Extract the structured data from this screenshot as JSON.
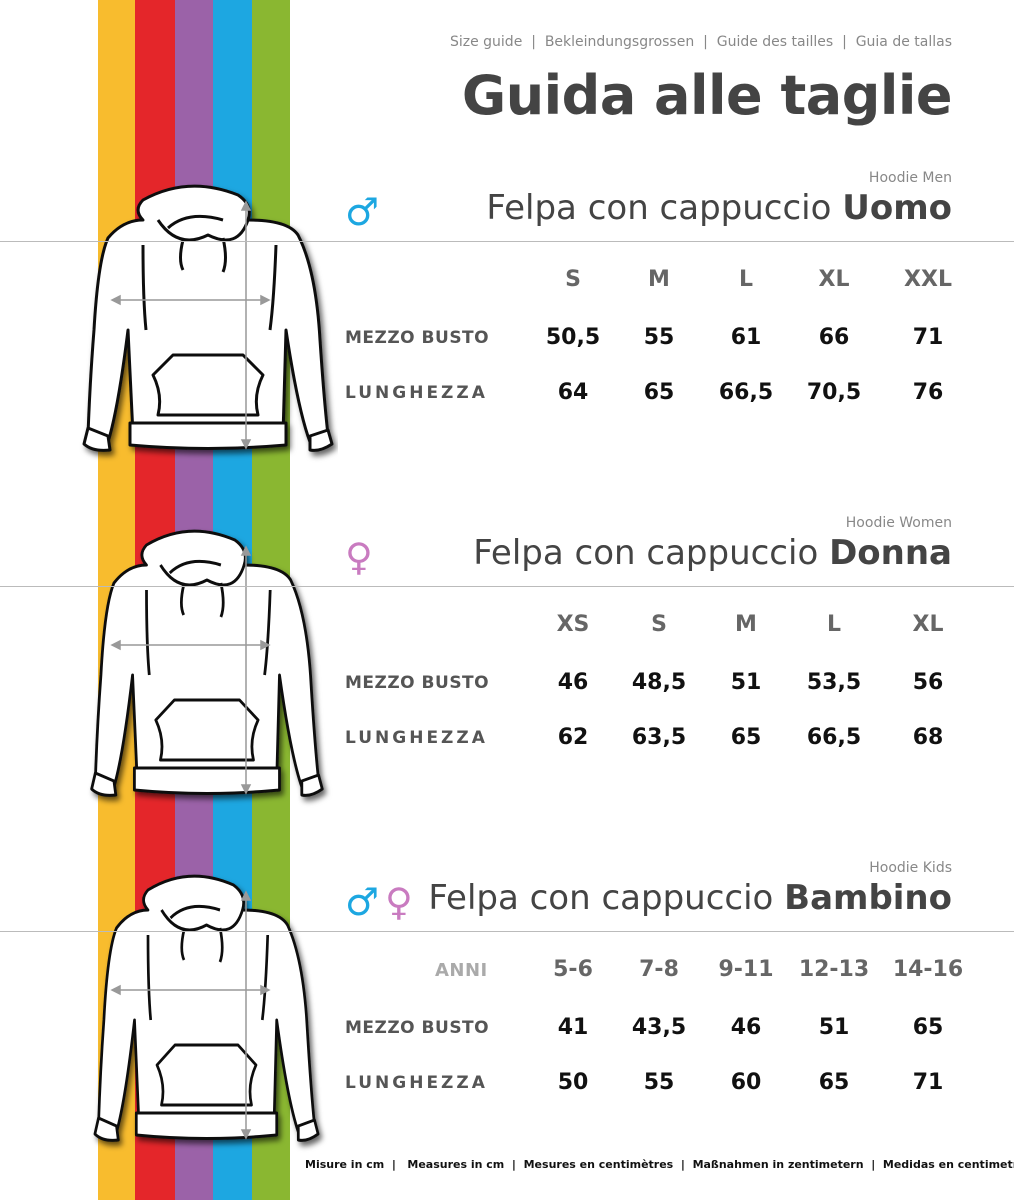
{
  "header": {
    "languages": "Size guide  |  Bekleindungsgrossen  |  Guide des tailles  |  Guia de tallas",
    "title": "Guida alle taglie"
  },
  "stripe_colors": [
    "#F8BC2E",
    "#E4262A",
    "#9B62A8",
    "#1DA7E1",
    "#8AB731"
  ],
  "sections": [
    {
      "subtitle": "Hoodie Men",
      "title_light": "Felpa con cappuccio ",
      "title_bold": "Uomo",
      "symbol": "♂",
      "symbol_color": "#1DA7E1",
      "corner_label": "",
      "sizes": [
        "S",
        "M",
        "L",
        "XL",
        "XXL"
      ],
      "rows": [
        {
          "label": "MEZZO BUSTO",
          "values": [
            "50,5",
            "55",
            "61",
            "66",
            "71"
          ]
        },
        {
          "label": "LUNGHEZZA",
          "values": [
            "64",
            "65",
            "66,5",
            "70,5",
            "76"
          ]
        }
      ]
    },
    {
      "subtitle": "Hoodie Women",
      "title_light": "Felpa con cappuccio ",
      "title_bold": "Donna",
      "symbol": "♀",
      "symbol_color": "#C97BC0",
      "corner_label": "",
      "sizes": [
        "XS",
        "S",
        "M",
        "L",
        "XL"
      ],
      "rows": [
        {
          "label": "MEZZO BUSTO",
          "values": [
            "46",
            "48,5",
            "51",
            "53,5",
            "56"
          ]
        },
        {
          "label": "LUNGHEZZA",
          "values": [
            "62",
            "63,5",
            "65",
            "66,5",
            "68"
          ]
        }
      ]
    },
    {
      "subtitle": "Hoodie Kids",
      "title_light": "Felpa con cappuccio ",
      "title_bold": "Bambino",
      "symbol": "♂",
      "symbol2": "♀",
      "symbol_color": "#1DA7E1",
      "symbol2_color": "#C97BC0",
      "corner_label": "ANNI",
      "sizes": [
        "5-6",
        "7-8",
        "9-11",
        "12-13",
        "14-16"
      ],
      "rows": [
        {
          "label": "MEZZO BUSTO",
          "values": [
            "41",
            "43,5",
            "46",
            "51",
            "65"
          ]
        },
        {
          "label": "LUNGHEZZA",
          "values": [
            "50",
            "55",
            "60",
            "65",
            "71"
          ]
        }
      ]
    }
  ],
  "footer": "Misure in cm  |   Measures in cm  |  Mesures en centimètres  |  Maßnahmen in zentimetern  |  Medidas en centimetros"
}
